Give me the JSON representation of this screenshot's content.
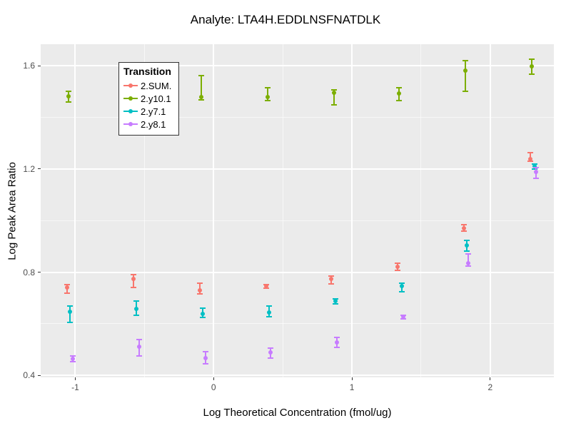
{
  "chart_data": {
    "type": "scatter",
    "title": "Analyte: LTA4H.EDDLNSFNATDLK",
    "xlabel": "Log Theoretical Concentration (fmol/ug)",
    "ylabel": "Log Peak Area Ratio",
    "xlim": [
      -1.25,
      2.46
    ],
    "ylim": [
      0.392,
      1.684
    ],
    "x_ticks": [
      -1,
      0,
      1,
      2
    ],
    "x_tick_labels": [
      "-1",
      "0",
      "1",
      "2"
    ],
    "y_ticks": [
      0.4,
      0.8,
      1.2,
      1.6
    ],
    "y_tick_labels": [
      "0.4",
      "0.8",
      "1.2",
      "1.6"
    ],
    "x_minor_gridlines": [
      -0.5,
      0.5,
      1.5
    ],
    "y_minor_gridlines": [
      0.6,
      1.0,
      1.4
    ],
    "grid": true,
    "panel_background": "#EBEBEB",
    "gridline_color": "#FFFFFF",
    "legend": {
      "title": "Transition",
      "position": "top-left-inset"
    },
    "series": [
      {
        "name": "2.SUM.",
        "color": "#F8766D",
        "points": [
          {
            "x": -1.06,
            "y": 0.741,
            "lo": 0.718,
            "hi": 0.752
          },
          {
            "x": -0.58,
            "y": 0.774,
            "lo": 0.74,
            "hi": 0.79
          },
          {
            "x": -0.1,
            "y": 0.73,
            "lo": 0.716,
            "hi": 0.758
          },
          {
            "x": 0.38,
            "y": 0.746,
            "lo": 0.738,
            "hi": 0.752
          },
          {
            "x": 0.85,
            "y": 0.773,
            "lo": 0.755,
            "hi": 0.785
          },
          {
            "x": 1.33,
            "y": 0.822,
            "lo": 0.808,
            "hi": 0.836
          },
          {
            "x": 1.81,
            "y": 0.97,
            "lo": 0.958,
            "hi": 0.984
          },
          {
            "x": 2.29,
            "y": 1.238,
            "lo": 1.229,
            "hi": 1.263
          }
        ]
      },
      {
        "name": "2.y10.1",
        "color": "#7CAE00",
        "points": [
          {
            "x": -1.05,
            "y": 1.482,
            "lo": 1.459,
            "hi": 1.501
          },
          {
            "x": -0.09,
            "y": 1.48,
            "lo": 1.468,
            "hi": 1.563
          },
          {
            "x": 0.39,
            "y": 1.479,
            "lo": 1.465,
            "hi": 1.516
          },
          {
            "x": 0.87,
            "y": 1.495,
            "lo": 1.449,
            "hi": 1.507
          },
          {
            "x": 1.34,
            "y": 1.493,
            "lo": 1.465,
            "hi": 1.516
          },
          {
            "x": 1.82,
            "y": 1.581,
            "lo": 1.502,
            "hi": 1.62
          },
          {
            "x": 2.3,
            "y": 1.598,
            "lo": 1.569,
            "hi": 1.627
          }
        ]
      },
      {
        "name": "2.y7.1",
        "color": "#00BFC4",
        "points": [
          {
            "x": -1.04,
            "y": 0.647,
            "lo": 0.606,
            "hi": 0.668
          },
          {
            "x": -0.56,
            "y": 0.658,
            "lo": 0.633,
            "hi": 0.687
          },
          {
            "x": -0.08,
            "y": 0.637,
            "lo": 0.624,
            "hi": 0.661
          },
          {
            "x": 0.4,
            "y": 0.643,
            "lo": 0.627,
            "hi": 0.668
          },
          {
            "x": 0.88,
            "y": 0.688,
            "lo": 0.678,
            "hi": 0.697
          },
          {
            "x": 1.36,
            "y": 0.746,
            "lo": 0.723,
            "hi": 0.757
          },
          {
            "x": 1.83,
            "y": 0.905,
            "lo": 0.882,
            "hi": 0.922
          },
          {
            "x": 2.32,
            "y": 1.21,
            "lo": 1.199,
            "hi": 1.218
          }
        ]
      },
      {
        "name": "2.y8.1",
        "color": "#C77CFF",
        "points": [
          {
            "x": -1.02,
            "y": 0.464,
            "lo": 0.452,
            "hi": 0.475
          },
          {
            "x": -0.54,
            "y": 0.51,
            "lo": 0.475,
            "hi": 0.538
          },
          {
            "x": -0.06,
            "y": 0.468,
            "lo": 0.445,
            "hi": 0.492
          },
          {
            "x": 0.41,
            "y": 0.49,
            "lo": 0.467,
            "hi": 0.506
          },
          {
            "x": 0.89,
            "y": 0.527,
            "lo": 0.509,
            "hi": 0.546
          },
          {
            "x": 1.37,
            "y": 0.628,
            "lo": 0.62,
            "hi": 0.634
          },
          {
            "x": 1.84,
            "y": 0.834,
            "lo": 0.823,
            "hi": 0.87
          },
          {
            "x": 2.33,
            "y": 1.188,
            "lo": 1.164,
            "hi": 1.205
          }
        ]
      }
    ]
  }
}
